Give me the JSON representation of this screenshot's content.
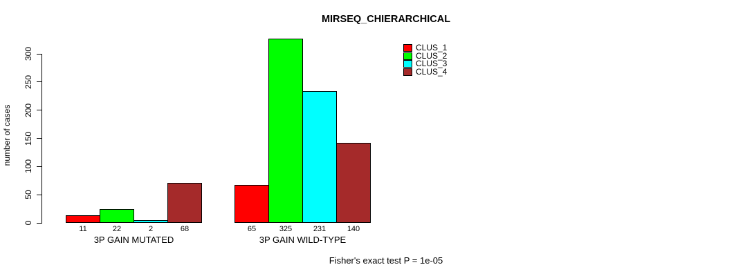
{
  "chart_data": {
    "type": "bar",
    "title": "MIRSEQ_CHIERARCHICAL",
    "ylabel": "number of cases",
    "xlabel": "",
    "footer": "Fisher's exact test P = 1e-05",
    "ylim": [
      0,
      300
    ],
    "yticks": [
      0,
      50,
      100,
      150,
      200,
      250,
      300
    ],
    "categories": [
      "3P GAIN MUTATED",
      "3P GAIN WILD-TYPE"
    ],
    "series": [
      {
        "name": "CLUS_1",
        "color": "#ff0000",
        "values": [
          11,
          65
        ]
      },
      {
        "name": "CLUS_2",
        "color": "#00ff00",
        "values": [
          22,
          325
        ]
      },
      {
        "name": "CLUS_3",
        "color": "#00ffff",
        "values": [
          2,
          231
        ]
      },
      {
        "name": "CLUS_4",
        "color": "#a52a2a",
        "values": [
          68,
          140
        ]
      }
    ],
    "bar_value_labels_shown": true,
    "legend_position": "top-right",
    "grid": false,
    "background_color": "#ffffff",
    "bar_border_color": "#000000"
  }
}
